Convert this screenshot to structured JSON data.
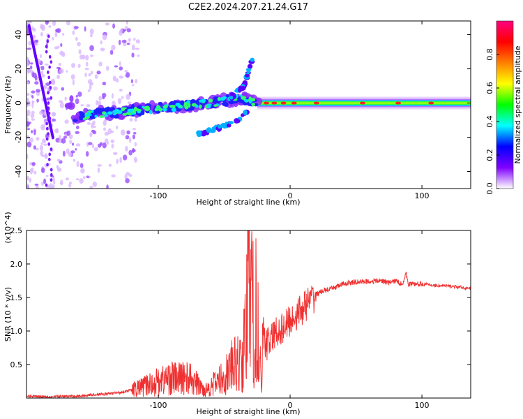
{
  "title": "C2E2.2024.207.21.24.G17",
  "chart_data": [
    {
      "type": "heatmap",
      "xlabel": "Height of straight line (km)",
      "ylabel": "Frequency (Hz)",
      "xlim": [
        -200,
        137
      ],
      "ylim": [
        -50,
        48
      ],
      "xticks": [
        -100,
        0,
        100
      ],
      "yticks": [
        -40,
        -20,
        0,
        20,
        40
      ],
      "colorbar": {
        "label": "Normalized spectral amplitude",
        "range": [
          0,
          1
        ],
        "ticks": [
          "0.0",
          "0.2",
          "0.4",
          "0.6",
          "0.8"
        ],
        "colors": [
          "#ffffff",
          "#8000ff",
          "#0000ff",
          "#00ffff",
          "#00ff00",
          "#ffff00",
          "#ff8000",
          "#ff0000",
          "#ff0080"
        ]
      },
      "features": [
        {
          "name": "main trend",
          "x": [
            -165,
            -140,
            -100,
            -60,
            -45,
            -35,
            -30,
            -20,
            0,
            50,
            100,
            137
          ],
          "y": [
            -8,
            -6,
            -3,
            0,
            2,
            3,
            1,
            0,
            0,
            0,
            0,
            0
          ]
        },
        {
          "name": "upper branch",
          "x": [
            -45,
            -35,
            -28
          ],
          "y": [
            3,
            10,
            27
          ]
        },
        {
          "name": "lower branch",
          "x": [
            -70,
            -55,
            -40,
            -32
          ],
          "y": [
            -18,
            -15,
            -10,
            -4
          ]
        },
        {
          "name": "left streak",
          "x": [
            -198,
            -190,
            -180
          ],
          "y": [
            45,
            15,
            -20
          ]
        }
      ]
    },
    {
      "type": "line",
      "xlabel": "Height of straight line (km)",
      "ylabel": "SNR (10 * v/v)",
      "yunit": "(x10^4)",
      "xlim": [
        -200,
        137
      ],
      "ylim": [
        0,
        2.5
      ],
      "xticks": [
        -100,
        0,
        100
      ],
      "yticks": [
        0.5,
        1.0,
        1.5,
        2.0,
        2.5
      ],
      "color": "#f03030",
      "series": [
        {
          "name": "SNR",
          "x": [
            -200,
            -180,
            -160,
            -150,
            -140,
            -130,
            -120,
            -110,
            -100,
            -90,
            -85,
            -80,
            -75,
            -70,
            -65,
            -60,
            -55,
            -50,
            -45,
            -40,
            -36,
            -32,
            -30,
            -28,
            -26,
            -24,
            -22,
            -20,
            -18,
            -15,
            -10,
            -5,
            0,
            5,
            10,
            15,
            20,
            25,
            30,
            40,
            50,
            60,
            70,
            75,
            80,
            85,
            88,
            90,
            95,
            100,
            110,
            120,
            130,
            137
          ],
          "y": [
            0.03,
            0.02,
            0.03,
            0.05,
            0.06,
            0.08,
            0.12,
            0.18,
            0.25,
            0.3,
            0.28,
            0.32,
            0.27,
            0.2,
            0.12,
            0.18,
            0.25,
            0.3,
            0.45,
            0.5,
            0.55,
            1.4,
            2.4,
            0.3,
            0.5,
            0.2,
            0.5,
            0.9,
            0.8,
            0.85,
            1.0,
            1.05,
            1.15,
            1.25,
            1.35,
            1.45,
            1.55,
            1.6,
            1.62,
            1.7,
            1.73,
            1.74,
            1.75,
            1.72,
            1.75,
            1.7,
            1.85,
            1.7,
            1.7,
            1.7,
            1.68,
            1.67,
            1.65,
            1.63
          ]
        }
      ]
    }
  ]
}
